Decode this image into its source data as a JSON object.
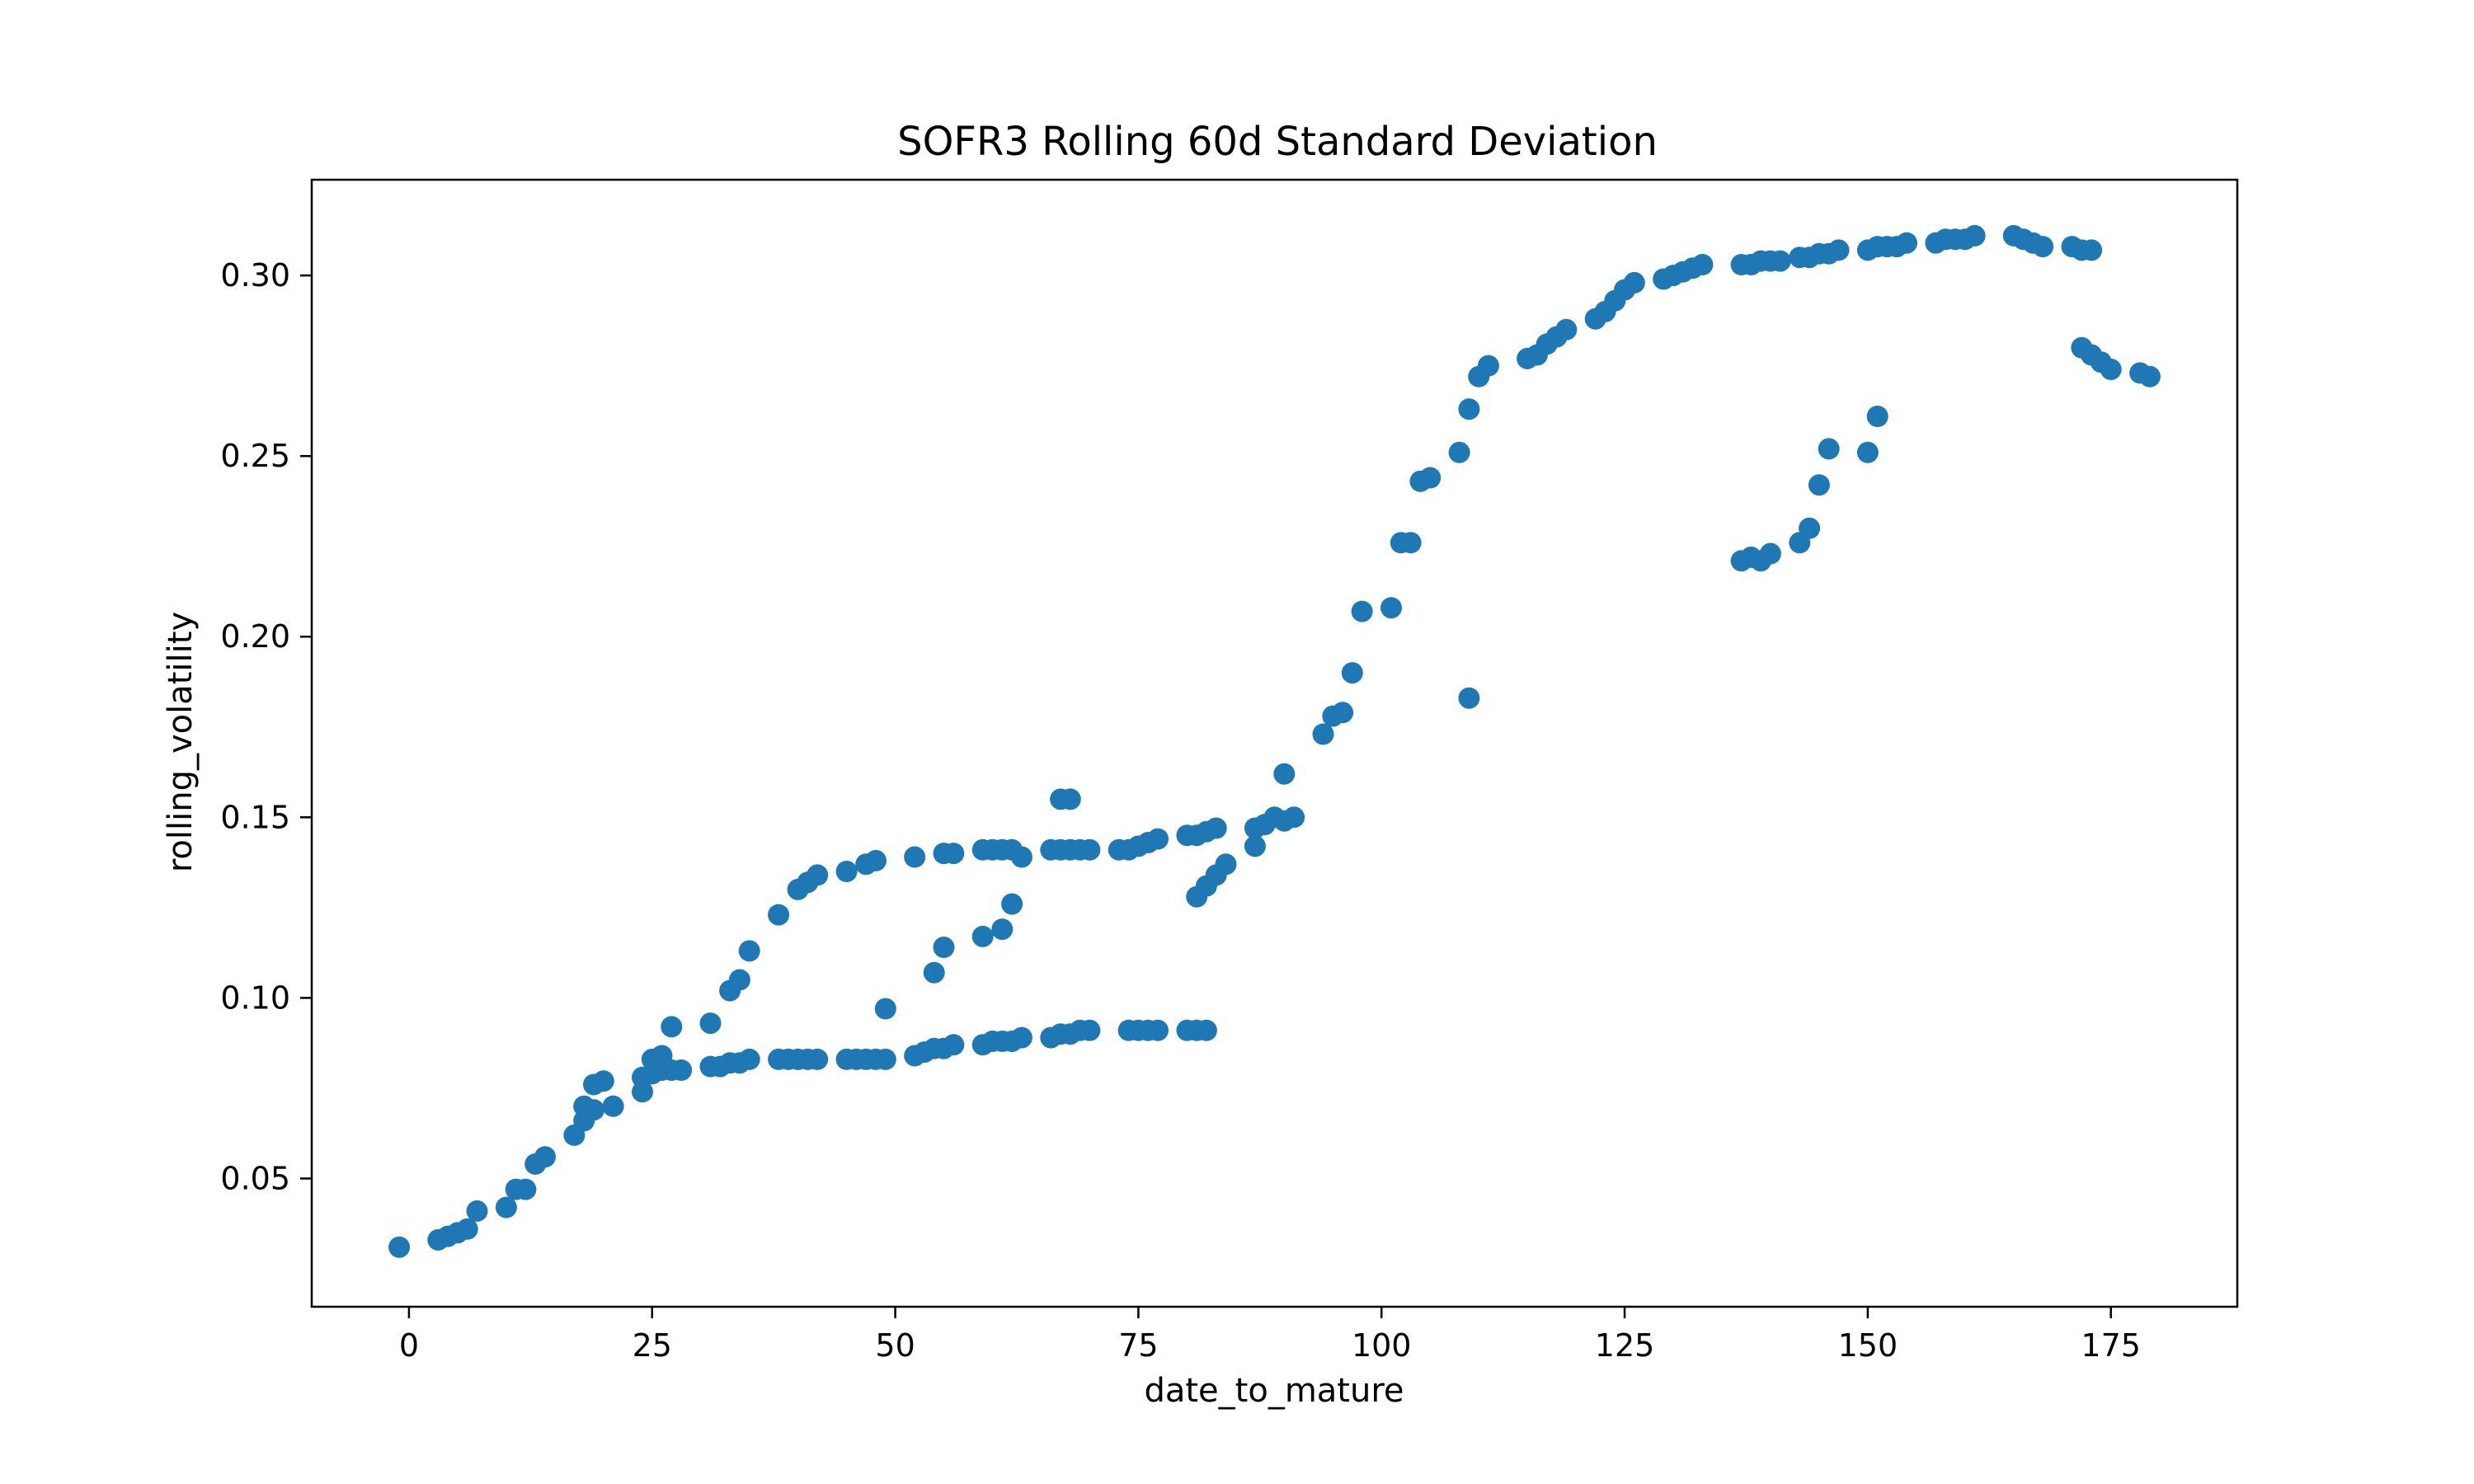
{
  "chart_data": {
    "type": "scatter",
    "title": "SOFR3 Rolling 60d Standard Deviation",
    "xlabel": "date_to_mature",
    "ylabel": "rolling_volatility",
    "xlim": [
      -10,
      188
    ],
    "ylim": [
      0.0145,
      0.3265
    ],
    "xticks": [
      0,
      25,
      50,
      75,
      100,
      125,
      150,
      175
    ],
    "xtick_labels": [
      "0",
      "25",
      "50",
      "75",
      "100",
      "125",
      "150",
      "175"
    ],
    "yticks": [
      0.05,
      0.1,
      0.15,
      0.2,
      0.25,
      0.3
    ],
    "ytick_labels": [
      "0.05",
      "0.10",
      "0.15",
      "0.20",
      "0.25",
      "0.30"
    ],
    "grid": false,
    "marker_color": "#1f77b4",
    "points": [
      [
        -1,
        0.031
      ],
      [
        3,
        0.033
      ],
      [
        4,
        0.034
      ],
      [
        5,
        0.035
      ],
      [
        6,
        0.036
      ],
      [
        7,
        0.041
      ],
      [
        10,
        0.042
      ],
      [
        11,
        0.047
      ],
      [
        12,
        0.047
      ],
      [
        13,
        0.054
      ],
      [
        14,
        0.056
      ],
      [
        17,
        0.062
      ],
      [
        18,
        0.066
      ],
      [
        18,
        0.07
      ],
      [
        19,
        0.076
      ],
      [
        19,
        0.069
      ],
      [
        20,
        0.077
      ],
      [
        21,
        0.07
      ],
      [
        24,
        0.074
      ],
      [
        24,
        0.078
      ],
      [
        25,
        0.083
      ],
      [
        25,
        0.079
      ],
      [
        26,
        0.084
      ],
      [
        26,
        0.08
      ],
      [
        27,
        0.092
      ],
      [
        27,
        0.08
      ],
      [
        28,
        0.08
      ],
      [
        31,
        0.093
      ],
      [
        31,
        0.081
      ],
      [
        32,
        0.081
      ],
      [
        33,
        0.102
      ],
      [
        33,
        0.082
      ],
      [
        34,
        0.105
      ],
      [
        34,
        0.082
      ],
      [
        35,
        0.113
      ],
      [
        35,
        0.083
      ],
      [
        38,
        0.123
      ],
      [
        38,
        0.083
      ],
      [
        39,
        0.083
      ],
      [
        40,
        0.13
      ],
      [
        40,
        0.083
      ],
      [
        41,
        0.132
      ],
      [
        41,
        0.083
      ],
      [
        42,
        0.134
      ],
      [
        42,
        0.083
      ],
      [
        45,
        0.135
      ],
      [
        45,
        0.083
      ],
      [
        46,
        0.083
      ],
      [
        47,
        0.137
      ],
      [
        47,
        0.083
      ],
      [
        48,
        0.138
      ],
      [
        48,
        0.083
      ],
      [
        49,
        0.097
      ],
      [
        49,
        0.083
      ],
      [
        52,
        0.139
      ],
      [
        52,
        0.084
      ],
      [
        53,
        0.085
      ],
      [
        54,
        0.107
      ],
      [
        54,
        0.086
      ],
      [
        55,
        0.114
      ],
      [
        55,
        0.14
      ],
      [
        55,
        0.086
      ],
      [
        56,
        0.14
      ],
      [
        56,
        0.087
      ],
      [
        59,
        0.117
      ],
      [
        59,
        0.141
      ],
      [
        59,
        0.087
      ],
      [
        60,
        0.141
      ],
      [
        60,
        0.088
      ],
      [
        61,
        0.119
      ],
      [
        61,
        0.141
      ],
      [
        61,
        0.088
      ],
      [
        62,
        0.126
      ],
      [
        62,
        0.141
      ],
      [
        62,
        0.088
      ],
      [
        63,
        0.139
      ],
      [
        63,
        0.089
      ],
      [
        66,
        0.141
      ],
      [
        66,
        0.089
      ],
      [
        67,
        0.155
      ],
      [
        67,
        0.141
      ],
      [
        67,
        0.09
      ],
      [
        68,
        0.155
      ],
      [
        68,
        0.141
      ],
      [
        68,
        0.09
      ],
      [
        69,
        0.141
      ],
      [
        69,
        0.091
      ],
      [
        70,
        0.141
      ],
      [
        70,
        0.091
      ],
      [
        73,
        0.141
      ],
      [
        74,
        0.141
      ],
      [
        74,
        0.091
      ],
      [
        75,
        0.142
      ],
      [
        75,
        0.091
      ],
      [
        76,
        0.143
      ],
      [
        76,
        0.091
      ],
      [
        77,
        0.144
      ],
      [
        77,
        0.091
      ],
      [
        80,
        0.145
      ],
      [
        80,
        0.091
      ],
      [
        81,
        0.128
      ],
      [
        81,
        0.145
      ],
      [
        81,
        0.091
      ],
      [
        82,
        0.131
      ],
      [
        82,
        0.146
      ],
      [
        82,
        0.091
      ],
      [
        83,
        0.134
      ],
      [
        83,
        0.147
      ],
      [
        84,
        0.137
      ],
      [
        87,
        0.142
      ],
      [
        87,
        0.147
      ],
      [
        88,
        0.148
      ],
      [
        89,
        0.15
      ],
      [
        90,
        0.162
      ],
      [
        90,
        0.149
      ],
      [
        91,
        0.15
      ],
      [
        94,
        0.173
      ],
      [
        95,
        0.178
      ],
      [
        96,
        0.179
      ],
      [
        97,
        0.19
      ],
      [
        98,
        0.207
      ],
      [
        101,
        0.208
      ],
      [
        102,
        0.226
      ],
      [
        103,
        0.226
      ],
      [
        104,
        0.243
      ],
      [
        105,
        0.244
      ],
      [
        108,
        0.251
      ],
      [
        109,
        0.183
      ],
      [
        109,
        0.263
      ],
      [
        110,
        0.272
      ],
      [
        111,
        0.275
      ],
      [
        115,
        0.277
      ],
      [
        116,
        0.278
      ],
      [
        117,
        0.281
      ],
      [
        118,
        0.283
      ],
      [
        119,
        0.285
      ],
      [
        122,
        0.288
      ],
      [
        123,
        0.29
      ],
      [
        124,
        0.293
      ],
      [
        125,
        0.296
      ],
      [
        126,
        0.298
      ],
      [
        129,
        0.299
      ],
      [
        130,
        0.3
      ],
      [
        131,
        0.301
      ],
      [
        132,
        0.302
      ],
      [
        133,
        0.303
      ],
      [
        137,
        0.221
      ],
      [
        137,
        0.303
      ],
      [
        138,
        0.222
      ],
      [
        138,
        0.303
      ],
      [
        139,
        0.221
      ],
      [
        139,
        0.304
      ],
      [
        140,
        0.223
      ],
      [
        140,
        0.304
      ],
      [
        141,
        0.304
      ],
      [
        143,
        0.226
      ],
      [
        143,
        0.305
      ],
      [
        144,
        0.23
      ],
      [
        144,
        0.305
      ],
      [
        145,
        0.242
      ],
      [
        145,
        0.306
      ],
      [
        146,
        0.252
      ],
      [
        146,
        0.306
      ],
      [
        147,
        0.307
      ],
      [
        150,
        0.251
      ],
      [
        150,
        0.307
      ],
      [
        151,
        0.261
      ],
      [
        151,
        0.308
      ],
      [
        152,
        0.308
      ],
      [
        153,
        0.308
      ],
      [
        154,
        0.309
      ],
      [
        157,
        0.309
      ],
      [
        158,
        0.31
      ],
      [
        159,
        0.31
      ],
      [
        160,
        0.31
      ],
      [
        161,
        0.311
      ],
      [
        165,
        0.311
      ],
      [
        166,
        0.31
      ],
      [
        167,
        0.309
      ],
      [
        168,
        0.308
      ],
      [
        171,
        0.308
      ],
      [
        172,
        0.28
      ],
      [
        172,
        0.307
      ],
      [
        173,
        0.278
      ],
      [
        173,
        0.307
      ],
      [
        174,
        0.276
      ],
      [
        175,
        0.274
      ],
      [
        178,
        0.273
      ],
      [
        179,
        0.272
      ]
    ]
  }
}
